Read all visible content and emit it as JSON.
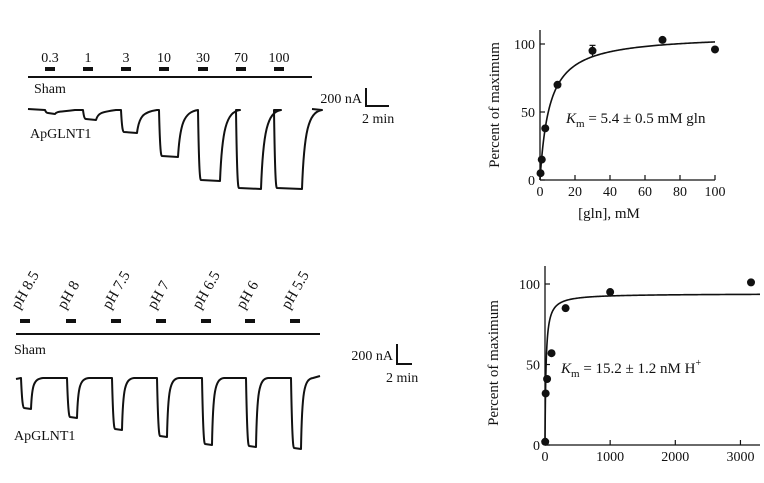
{
  "panels": {
    "top": {
      "concentration_labels": [
        "0.3",
        "1",
        "3",
        "10",
        "30",
        "70",
        "100"
      ],
      "trace_labels": {
        "sham": "Sham",
        "apglnt1": "ApGLNT1"
      },
      "scale_bar": {
        "current": "200 nA",
        "time": "2 min"
      }
    },
    "bottom": {
      "ph_labels": [
        "pH 8.5",
        "pH 8",
        "pH 7.5",
        "pH 7",
        "pH 6.5",
        "pH 6",
        "pH 5.5"
      ],
      "trace_labels": {
        "sham": "Sham",
        "apglnt1": "ApGLNT1"
      },
      "scale_bar": {
        "current": "200 nA",
        "time": "2 min"
      }
    }
  },
  "chart_data": [
    {
      "type": "scatter",
      "xlabel": "[gln], mM",
      "ylabel": "Percent of maximum",
      "xlim": [
        0,
        100
      ],
      "ylim": [
        0,
        100
      ],
      "xticks": [
        "0",
        "20",
        "40",
        "60",
        "80",
        "100"
      ],
      "yticks": [
        "0",
        "50",
        "100"
      ],
      "series": [
        {
          "x": [
            0.3,
            1,
            3,
            10,
            30,
            70,
            100
          ],
          "y": [
            5,
            15,
            38,
            70,
            95,
            103,
            96
          ],
          "error": [
            0,
            0,
            0,
            0,
            4,
            0,
            0
          ]
        }
      ],
      "fit": {
        "model": "michaelis-menten",
        "vmax": 107,
        "km": 5.4
      },
      "annotation": {
        "k": "K",
        "sub": "m",
        "text": " = 5.4 ± 0.5 mM gln"
      }
    },
    {
      "type": "scatter",
      "ylabel": "Percent of maximum",
      "xlim": [
        0,
        3300
      ],
      "ylim": [
        0,
        100
      ],
      "xticks": [
        "0",
        "1000",
        "2000",
        "3000"
      ],
      "yticks": [
        "0",
        "50",
        "100"
      ],
      "series": [
        {
          "x": [
            3.2,
            10,
            32,
            100,
            316,
            1000,
            3162
          ],
          "y": [
            2,
            32,
            41,
            57,
            85,
            95,
            101
          ]
        }
      ],
      "fit": {
        "model": "michaelis-menten",
        "vmax": 94,
        "km": 15.2
      },
      "annotation": {
        "k": "K",
        "sub": "m",
        "text": " = 15.2 ± 1.2 nM H",
        "sup": "+"
      }
    }
  ]
}
